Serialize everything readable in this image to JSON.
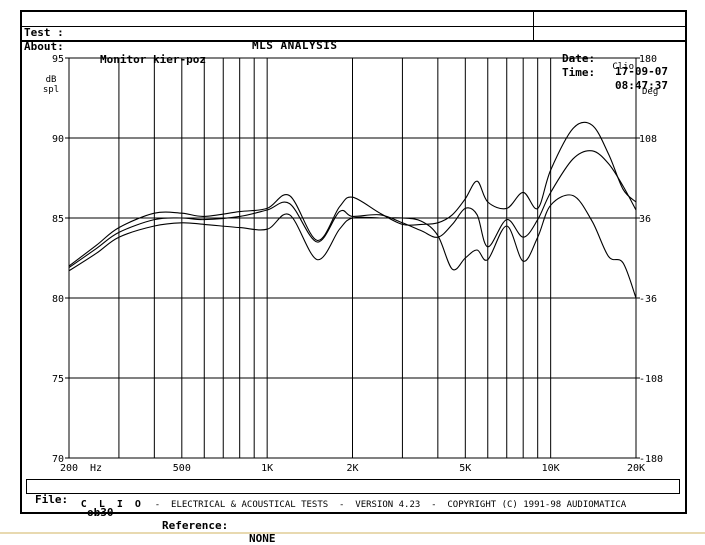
{
  "header": {
    "test_label": "Test :",
    "title": "MLS ANALYSIS",
    "date_label": "Date:",
    "date_value": "17-09-07",
    "about_label": "About:",
    "about_value": "Monitor kier-poz",
    "time_label": "Time:",
    "time_value": "08:47:37"
  },
  "footer": {
    "file_label": "File:",
    "file_value": "ob30",
    "reference_label": "Reference:",
    "reference_value": "NONE",
    "brand": "C L I O",
    "copyright": "ELECTRICAL & ACOUSTICAL TESTS  -  VERSION 4.23  -  COPYRIGHT (C) 1991-98 AUDIOMATICA"
  },
  "chart_data": {
    "type": "line",
    "watermark": "Clio",
    "xscale": "log",
    "xlim": [
      200,
      20000
    ],
    "ylim": [
      70,
      95
    ],
    "y2lim": [
      -180,
      180
    ],
    "grid": true,
    "ylabel_lines": [
      "dB",
      "spl"
    ],
    "y2label": "Deg",
    "x_ticks": [
      {
        "value": 200,
        "label": "200"
      },
      {
        "value": 500,
        "label": "500"
      },
      {
        "value": 1000,
        "label": "1K"
      },
      {
        "value": 2000,
        "label": "2K"
      },
      {
        "value": 5000,
        "label": "5K"
      },
      {
        "value": 10000,
        "label": "10K"
      },
      {
        "value": 20000,
        "label": "20K"
      }
    ],
    "x_unit": "Hz",
    "x_gridlines": [
      300,
      400,
      500,
      600,
      700,
      800,
      900,
      1000,
      2000,
      3000,
      4000,
      5000,
      6000,
      7000,
      8000,
      9000,
      10000
    ],
    "y_ticks": [
      {
        "value": 95,
        "label": "95"
      },
      {
        "value": 90,
        "label": "90"
      },
      {
        "value": 85,
        "label": "85"
      },
      {
        "value": 80,
        "label": "80"
      },
      {
        "value": 75,
        "label": "75"
      },
      {
        "value": 70,
        "label": "70"
      }
    ],
    "y2_ticks": [
      {
        "value": 180,
        "label": "180"
      },
      {
        "value": 108,
        "label": "108"
      },
      {
        "value": 36,
        "label": "36"
      },
      {
        "value": -36,
        "label": "-36"
      },
      {
        "value": -108,
        "label": "-108"
      },
      {
        "value": -180,
        "label": "-180"
      }
    ],
    "series": [
      {
        "x": [
          200,
          250,
          300,
          400,
          500,
          600,
          800,
          1000,
          1200,
          1500,
          1800,
          2000,
          2500,
          3000,
          3500,
          4000,
          4500,
          5000,
          5500,
          6000,
          7000,
          8000,
          9000,
          10000,
          12000,
          14000,
          16000,
          18000,
          20000
        ],
        "y": [
          82.0,
          83.3,
          84.4,
          85.3,
          85.3,
          85.1,
          85.4,
          85.6,
          86.4,
          83.6,
          85.7,
          86.3,
          85.3,
          84.6,
          84.6,
          84.7,
          85.2,
          86.2,
          87.3,
          86.0,
          85.6,
          86.6,
          85.6,
          88.0,
          90.6,
          90.8,
          89.0,
          86.8,
          86.0
        ]
      },
      {
        "x": [
          200,
          250,
          300,
          400,
          500,
          600,
          800,
          1000,
          1200,
          1500,
          1800,
          2000,
          2500,
          3000,
          3500,
          4000,
          4500,
          5000,
          5500,
          6000,
          7000,
          8000,
          9000,
          10000,
          12000,
          14000,
          16000,
          18000,
          20000
        ],
        "y": [
          81.9,
          83.1,
          84.1,
          84.9,
          85.0,
          84.9,
          85.1,
          85.5,
          85.9,
          83.5,
          85.4,
          85.1,
          85.2,
          84.7,
          84.2,
          83.8,
          84.6,
          85.6,
          85.2,
          83.2,
          84.9,
          83.8,
          84.9,
          86.6,
          88.7,
          89.2,
          88.4,
          87.0,
          85.5
        ]
      },
      {
        "x": [
          200,
          250,
          300,
          400,
          500,
          600,
          800,
          1000,
          1200,
          1500,
          1800,
          2000,
          2500,
          3000,
          3500,
          4000,
          4500,
          5000,
          5500,
          6000,
          7000,
          8000,
          9000,
          10000,
          12000,
          14000,
          16000,
          18000,
          20000
        ],
        "y": [
          81.7,
          82.8,
          83.8,
          84.5,
          84.7,
          84.6,
          84.4,
          84.3,
          85.2,
          82.4,
          84.3,
          85.0,
          85.0,
          85.0,
          84.8,
          83.9,
          81.8,
          82.5,
          83.0,
          82.4,
          84.5,
          82.3,
          83.8,
          85.8,
          86.4,
          84.8,
          82.6,
          82.2,
          80.0
        ]
      }
    ]
  }
}
